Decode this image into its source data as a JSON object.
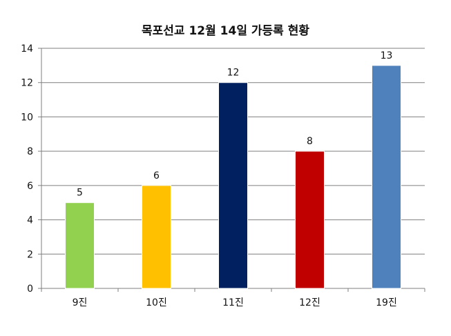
{
  "chart_data": {
    "type": "bar",
    "title": "목포선교 12월 14일 가등록 현황",
    "categories": [
      "9진",
      "10진",
      "11진",
      "12진",
      "19진"
    ],
    "values": [
      5,
      6,
      12,
      8,
      13
    ],
    "colors": [
      "#92d050",
      "#ffc000",
      "#002060",
      "#c00000",
      "#4f81bd"
    ],
    "ylim": [
      0,
      14
    ],
    "yticks": [
      0,
      2,
      4,
      6,
      8,
      10,
      12,
      14
    ],
    "grid": true,
    "legend": "none",
    "xlabel": "",
    "ylabel": ""
  }
}
